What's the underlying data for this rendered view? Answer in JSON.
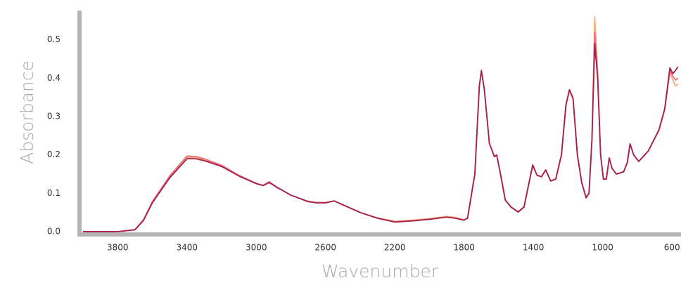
{
  "chart_data": {
    "type": "line",
    "x_label": "Wavenumber",
    "y_label": "Absorbance",
    "x": [
      4000,
      3800,
      3700,
      3650,
      3600,
      3500,
      3400,
      3350,
      3300,
      3200,
      3100,
      3000,
      2960,
      2925,
      2880,
      2850,
      2800,
      2700,
      2650,
      2600,
      2550,
      2500,
      2400,
      2300,
      2200,
      2100,
      2000,
      1900,
      1850,
      1800,
      1780,
      1738,
      1712,
      1700,
      1683,
      1654,
      1625,
      1612,
      1592,
      1562,
      1529,
      1488,
      1454,
      1425,
      1404,
      1379,
      1354,
      1329,
      1300,
      1271,
      1238,
      1212,
      1192,
      1171,
      1146,
      1121,
      1096,
      1079,
      1062,
      1046,
      1029,
      1012,
      996,
      979,
      962,
      946,
      921,
      879,
      858,
      842,
      821,
      792,
      737,
      675,
      642,
      612,
      595,
      580,
      565
    ],
    "series": [
      {
        "color": "#f4b07a",
        "values": [
          0,
          0,
          0.004,
          0.03,
          0.075,
          0.142,
          0.193,
          0.193,
          0.187,
          0.171,
          0.146,
          0.126,
          0.121,
          0.129,
          0.116,
          0.108,
          0.095,
          0.079,
          0.076,
          0.076,
          0.08,
          0.07,
          0.05,
          0.036,
          0.027,
          0.03,
          0.034,
          0.04,
          0.037,
          0.031,
          0.036,
          0.15,
          0.38,
          0.42,
          0.37,
          0.23,
          0.196,
          0.2,
          0.156,
          0.083,
          0.065,
          0.052,
          0.065,
          0.128,
          0.173,
          0.147,
          0.143,
          0.161,
          0.132,
          0.137,
          0.2,
          0.33,
          0.37,
          0.348,
          0.2,
          0.128,
          0.09,
          0.1,
          0.24,
          0.56,
          0.42,
          0.2,
          0.138,
          0.137,
          0.192,
          0.165,
          0.15,
          0.156,
          0.18,
          0.229,
          0.2,
          0.183,
          0.21,
          0.265,
          0.318,
          0.415,
          0.395,
          0.38,
          0.385
        ]
      },
      {
        "color": "#e8707c",
        "values": [
          0,
          0,
          0.005,
          0.032,
          0.078,
          0.145,
          0.197,
          0.196,
          0.19,
          0.173,
          0.147,
          0.126,
          0.121,
          0.13,
          0.116,
          0.108,
          0.095,
          0.079,
          0.076,
          0.076,
          0.08,
          0.07,
          0.05,
          0.035,
          0.026,
          0.028,
          0.033,
          0.038,
          0.035,
          0.03,
          0.036,
          0.15,
          0.38,
          0.418,
          0.37,
          0.23,
          0.196,
          0.2,
          0.155,
          0.082,
          0.064,
          0.052,
          0.065,
          0.128,
          0.172,
          0.147,
          0.143,
          0.16,
          0.132,
          0.137,
          0.2,
          0.33,
          0.368,
          0.346,
          0.2,
          0.128,
          0.09,
          0.1,
          0.24,
          0.52,
          0.41,
          0.2,
          0.138,
          0.137,
          0.192,
          0.165,
          0.15,
          0.156,
          0.18,
          0.228,
          0.2,
          0.183,
          0.21,
          0.264,
          0.318,
          0.42,
          0.405,
          0.395,
          0.4
        ]
      },
      {
        "color": "#a3214b",
        "values": [
          0,
          0,
          0.005,
          0.03,
          0.075,
          0.14,
          0.19,
          0.19,
          0.185,
          0.17,
          0.145,
          0.125,
          0.12,
          0.128,
          0.115,
          0.108,
          0.095,
          0.078,
          0.075,
          0.075,
          0.08,
          0.07,
          0.05,
          0.035,
          0.025,
          0.028,
          0.032,
          0.038,
          0.035,
          0.03,
          0.035,
          0.15,
          0.38,
          0.42,
          0.37,
          0.23,
          0.195,
          0.2,
          0.155,
          0.082,
          0.064,
          0.051,
          0.064,
          0.128,
          0.174,
          0.147,
          0.143,
          0.161,
          0.132,
          0.137,
          0.2,
          0.33,
          0.37,
          0.348,
          0.2,
          0.128,
          0.088,
          0.1,
          0.238,
          0.49,
          0.4,
          0.2,
          0.137,
          0.137,
          0.192,
          0.165,
          0.15,
          0.156,
          0.18,
          0.229,
          0.2,
          0.183,
          0.21,
          0.266,
          0.32,
          0.427,
          0.412,
          0.42,
          0.43
        ]
      }
    ],
    "xlim": [
      4000,
      560
    ],
    "ylim": [
      0,
      0.58
    ],
    "xticks": [
      3800,
      3400,
      3000,
      2600,
      2200,
      1800,
      1400,
      1000,
      600
    ],
    "yticks": [
      {
        "value": 0,
        "label": "0.0"
      },
      0.1,
      0.2,
      0.3,
      0.4,
      0.5
    ]
  }
}
